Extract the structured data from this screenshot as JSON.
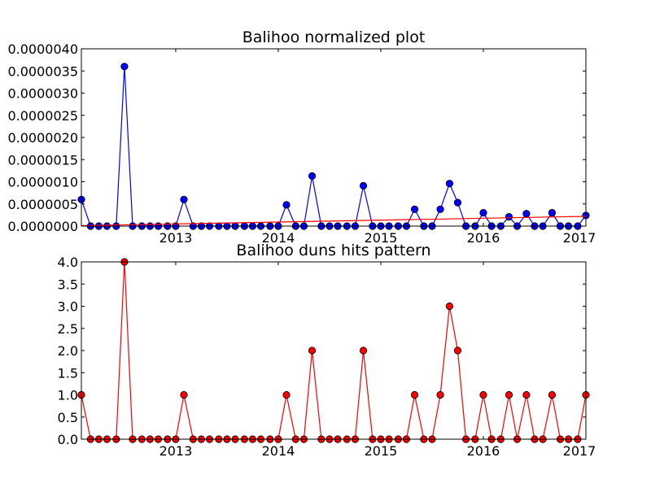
{
  "chart_data": [
    {
      "type": "line",
      "title": "Balihoo normalized plot",
      "xlabel": "",
      "ylabel": "",
      "xlim": [
        2012.08,
        2017.0
      ],
      "ylim": [
        0,
        4e-06
      ],
      "grid": false,
      "legend": "none",
      "x_ticks": [
        2013,
        2014,
        2015,
        2016,
        2017
      ],
      "x_tick_labels": [
        "2013",
        "2014",
        "2015",
        "2016",
        "2017"
      ],
      "y_ticks": [
        0,
        5e-07,
        1e-06,
        1.5e-06,
        2e-06,
        2.5e-06,
        3e-06,
        3.5e-06,
        4e-06
      ],
      "y_tick_labels": [
        "0.0000000",
        "0.0000005",
        "0.0000010",
        "0.0000015",
        "0.0000020",
        "0.0000025",
        "0.0000030",
        "0.0000035",
        "0.0000040"
      ],
      "series": [
        {
          "color": "#0000ff",
          "marker": "circle",
          "x": [
            2012.08,
            2012.17,
            2012.25,
            2012.33,
            2012.42,
            2012.5,
            2012.58,
            2012.67,
            2012.75,
            2012.83,
            2012.92,
            2013.0,
            2013.08,
            2013.17,
            2013.25,
            2013.33,
            2013.42,
            2013.5,
            2013.58,
            2013.67,
            2013.75,
            2013.83,
            2013.92,
            2014.0,
            2014.08,
            2014.17,
            2014.25,
            2014.33,
            2014.42,
            2014.5,
            2014.58,
            2014.67,
            2014.75,
            2014.83,
            2014.92,
            2015.0,
            2015.08,
            2015.17,
            2015.25,
            2015.33,
            2015.42,
            2015.5,
            2015.58,
            2015.67,
            2015.75,
            2015.83,
            2015.92,
            2016.0,
            2016.08,
            2016.17,
            2016.25,
            2016.33,
            2016.42,
            2016.5,
            2016.58,
            2016.67,
            2016.75,
            2016.83,
            2016.92,
            2017.0
          ],
          "values": [
            6e-07,
            0,
            0,
            0,
            0,
            3.6e-06,
            0,
            0,
            0,
            0,
            0,
            0,
            6e-07,
            0,
            0,
            0,
            0,
            0,
            0,
            0,
            0,
            0,
            0,
            0,
            4.8e-07,
            0,
            0,
            1.13e-06,
            0,
            0,
            0,
            0,
            0,
            9.1e-07,
            0,
            0,
            0,
            0,
            0,
            3.8e-07,
            0,
            0,
            3.8e-07,
            9.6e-07,
            5.3e-07,
            0,
            0,
            3e-07,
            0,
            0,
            2.1e-07,
            0,
            2.8e-07,
            0,
            0,
            3e-07,
            0,
            0,
            0,
            2.4e-07
          ]
        },
        {
          "color": "#ff0000",
          "marker": "none",
          "x": [
            2012.08,
            2017.0
          ],
          "values": [
            1e-08,
            2.2e-07
          ]
        }
      ]
    },
    {
      "type": "line",
      "title": "Balihoo duns hits pattern",
      "xlabel": "",
      "ylabel": "",
      "xlim": [
        2012.08,
        2017.0
      ],
      "ylim": [
        0,
        4.0
      ],
      "grid": false,
      "legend": "none",
      "x_ticks": [
        2013,
        2014,
        2015,
        2016,
        2017
      ],
      "x_tick_labels": [
        "2013",
        "2014",
        "2015",
        "2016",
        "2017"
      ],
      "y_ticks": [
        0,
        0.5,
        1.0,
        1.5,
        2.0,
        2.5,
        3.0,
        3.5,
        4.0
      ],
      "y_tick_labels": [
        "0.0",
        "0.5",
        "1.0",
        "1.5",
        "2.0",
        "2.5",
        "3.0",
        "3.5",
        "4.0"
      ],
      "series": [
        {
          "color": "#ff0000",
          "marker": "circle",
          "x": [
            2012.08,
            2012.17,
            2012.25,
            2012.33,
            2012.42,
            2012.5,
            2012.58,
            2012.67,
            2012.75,
            2012.83,
            2012.92,
            2013.0,
            2013.08,
            2013.17,
            2013.25,
            2013.33,
            2013.42,
            2013.5,
            2013.58,
            2013.67,
            2013.75,
            2013.83,
            2013.92,
            2014.0,
            2014.08,
            2014.17,
            2014.25,
            2014.33,
            2014.42,
            2014.5,
            2014.58,
            2014.67,
            2014.75,
            2014.83,
            2014.92,
            2015.0,
            2015.08,
            2015.17,
            2015.25,
            2015.33,
            2015.42,
            2015.5,
            2015.58,
            2015.67,
            2015.75,
            2015.83,
            2015.92,
            2016.0,
            2016.08,
            2016.17,
            2016.25,
            2016.33,
            2016.42,
            2016.5,
            2016.58,
            2016.67,
            2016.75,
            2016.83,
            2016.92,
            2017.0
          ],
          "values": [
            1,
            0,
            0,
            0,
            0,
            4,
            0,
            0,
            0,
            0,
            0,
            0,
            1,
            0,
            0,
            0,
            0,
            0,
            0,
            0,
            0,
            0,
            0,
            0,
            1,
            0,
            0,
            2,
            0,
            0,
            0,
            0,
            0,
            2,
            0,
            0,
            0,
            0,
            0,
            1,
            0,
            0,
            1,
            3,
            2,
            0,
            0,
            1,
            0,
            0,
            1,
            0,
            1,
            0,
            0,
            1,
            0,
            0,
            0,
            1
          ]
        }
      ]
    }
  ]
}
